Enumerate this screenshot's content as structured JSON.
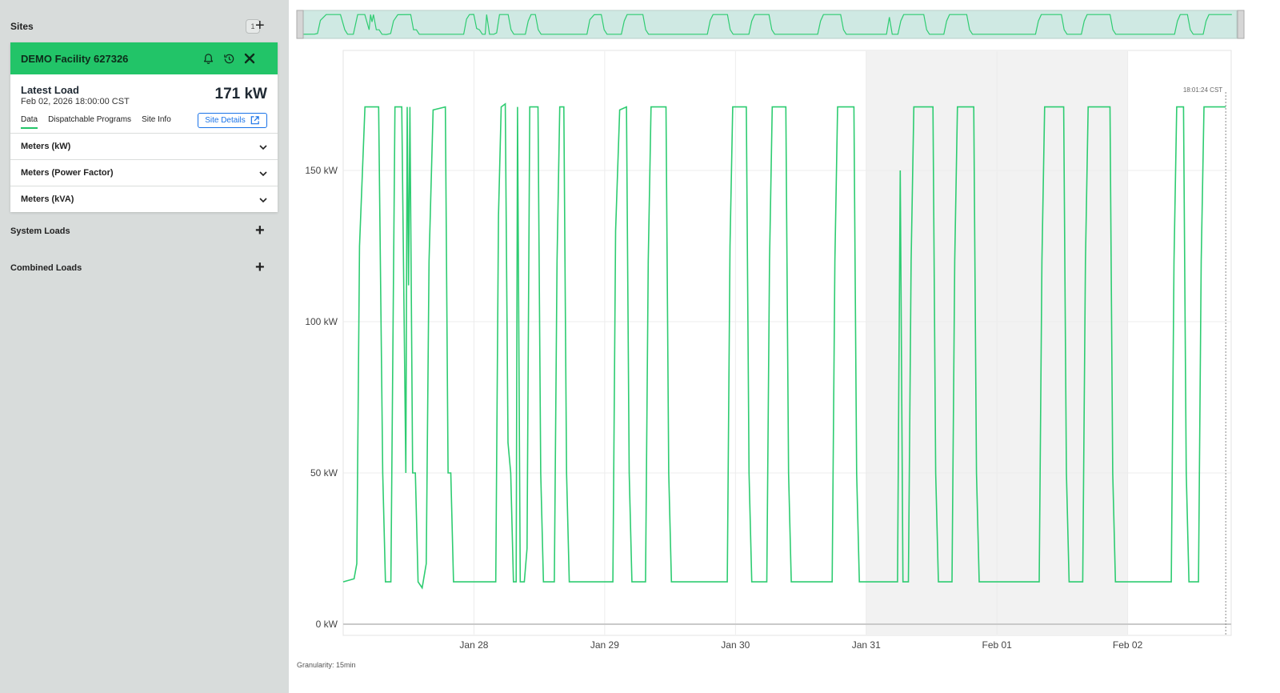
{
  "sidebar": {
    "sites_title": "Sites",
    "sites_count": "1",
    "site": {
      "name": "DEMO Facility 627326",
      "latest_label": "Latest Load",
      "latest_time": "Feb 02, 2026 18:00:00 CST",
      "latest_value": "171 kW",
      "tabs": [
        {
          "label": "Data",
          "active": true
        },
        {
          "label": "Dispatchable Programs",
          "active": false
        },
        {
          "label": "Site Info",
          "active": false
        }
      ],
      "site_details_label": "Site Details",
      "meters": [
        {
          "label": "Meters (kW)"
        },
        {
          "label": "Meters (Power Factor)"
        },
        {
          "label": "Meters (kVA)"
        }
      ],
      "icons": [
        "bell-icon",
        "history-icon",
        "close-icon"
      ]
    },
    "system_loads_label": "System Loads",
    "combined_loads_label": "Combined Loads"
  },
  "main": {
    "granularity": "Granularity: 15min",
    "cursor_label": "18:01:24 CST"
  },
  "colors": {
    "accent": "#22c468",
    "line": "#2ecc71",
    "link": "#1a73e8",
    "sidebar_bg": "#d8dcdb",
    "shade": "#f2f2f2"
  },
  "chart_data": {
    "type": "line",
    "title": "",
    "xlabel": "",
    "ylabel": "",
    "ylim": [
      0,
      185
    ],
    "y_ticks": [
      "0 kW",
      "50 kW",
      "100 kW",
      "150 kW"
    ],
    "x_ticks": [
      "Jan 28",
      "Jan 29",
      "Jan 30",
      "Jan 31",
      "Feb 01",
      "Feb 02"
    ],
    "x_domain": [
      "2026-01-27 00:00",
      "2026-02-02 19:00"
    ],
    "shaded_range": [
      "2026-01-31 00:00",
      "2026-02-02 00:00"
    ],
    "cursor_time": "2026-02-02 18:00",
    "grid": true,
    "series": [
      {
        "values": [
          [
            "2026-01-27 00:00",
            14
          ],
          [
            "2026-01-27 02:00",
            15
          ],
          [
            "2026-01-27 02:30",
            20
          ],
          [
            "2026-01-27 03:00",
            125
          ],
          [
            "2026-01-27 03:30",
            148
          ],
          [
            "2026-01-27 04:00",
            171
          ],
          [
            "2026-01-27 06:30",
            171
          ],
          [
            "2026-01-27 07:15",
            50
          ],
          [
            "2026-01-27 07:45",
            14
          ],
          [
            "2026-01-27 08:45",
            14
          ],
          [
            "2026-01-27 09:30",
            171
          ],
          [
            "2026-01-27 10:45",
            171
          ],
          [
            "2026-01-27 11:30",
            50
          ],
          [
            "2026-01-27 11:45",
            171
          ],
          [
            "2026-01-27 12:00",
            112
          ],
          [
            "2026-01-27 12:15",
            171
          ],
          [
            "2026-01-27 12:45",
            50
          ],
          [
            "2026-01-27 13:15",
            50
          ],
          [
            "2026-01-27 13:45",
            14
          ],
          [
            "2026-01-27 14:30",
            12
          ],
          [
            "2026-01-27 15:15",
            20
          ],
          [
            "2026-01-27 15:45",
            120
          ],
          [
            "2026-01-27 16:30",
            170
          ],
          [
            "2026-01-27 18:45",
            171
          ],
          [
            "2026-01-27 19:15",
            50
          ],
          [
            "2026-01-27 19:45",
            50
          ],
          [
            "2026-01-27 20:15",
            14
          ],
          [
            "2026-01-28 04:00",
            14
          ],
          [
            "2026-01-28 04:30",
            135
          ],
          [
            "2026-01-28 05:00",
            171
          ],
          [
            "2026-01-28 05:45",
            172
          ],
          [
            "2026-01-28 06:15",
            60
          ],
          [
            "2026-01-28 06:45",
            50
          ],
          [
            "2026-01-28 07:15",
            14
          ],
          [
            "2026-01-28 07:45",
            14
          ],
          [
            "2026-01-28 08:00",
            171
          ],
          [
            "2026-01-28 08:30",
            14
          ],
          [
            "2026-01-28 09:15",
            14
          ],
          [
            "2026-01-28 09:45",
            25
          ],
          [
            "2026-01-28 10:15",
            171
          ],
          [
            "2026-01-28 11:45",
            171
          ],
          [
            "2026-01-28 12:15",
            50
          ],
          [
            "2026-01-28 12:45",
            14
          ],
          [
            "2026-01-28 14:45",
            14
          ],
          [
            "2026-01-28 15:15",
            120
          ],
          [
            "2026-01-28 15:45",
            171
          ],
          [
            "2026-01-28 16:30",
            171
          ],
          [
            "2026-01-28 17:00",
            50
          ],
          [
            "2026-01-28 17:30",
            14
          ],
          [
            "2026-01-29 01:30",
            14
          ],
          [
            "2026-01-29 02:00",
            130
          ],
          [
            "2026-01-29 02:45",
            170
          ],
          [
            "2026-01-29 04:00",
            171
          ],
          [
            "2026-01-29 04:30",
            50
          ],
          [
            "2026-01-29 05:00",
            14
          ],
          [
            "2026-01-29 07:30",
            14
          ],
          [
            "2026-01-29 08:00",
            120
          ],
          [
            "2026-01-29 08:30",
            171
          ],
          [
            "2026-01-29 11:15",
            171
          ],
          [
            "2026-01-29 11:45",
            50
          ],
          [
            "2026-01-29 12:15",
            14
          ],
          [
            "2026-01-29 22:30",
            14
          ],
          [
            "2026-01-29 23:00",
            125
          ],
          [
            "2026-01-29 23:30",
            171
          ],
          [
            "2026-01-30 02:00",
            171
          ],
          [
            "2026-01-30 02:30",
            50
          ],
          [
            "2026-01-30 03:00",
            14
          ],
          [
            "2026-01-30 05:45",
            14
          ],
          [
            "2026-01-30 06:15",
            120
          ],
          [
            "2026-01-30 06:45",
            171
          ],
          [
            "2026-01-30 09:15",
            171
          ],
          [
            "2026-01-30 09:45",
            50
          ],
          [
            "2026-01-30 10:15",
            14
          ],
          [
            "2026-01-30 17:45",
            14
          ],
          [
            "2026-01-30 18:15",
            120
          ],
          [
            "2026-01-30 18:45",
            171
          ],
          [
            "2026-01-30 21:45",
            171
          ],
          [
            "2026-01-30 22:15",
            50
          ],
          [
            "2026-01-30 22:45",
            14
          ],
          [
            "2026-01-31 05:45",
            14
          ],
          [
            "2026-01-31 06:15",
            150
          ],
          [
            "2026-01-31 06:45",
            14
          ],
          [
            "2026-01-31 07:45",
            14
          ],
          [
            "2026-01-31 08:15",
            120
          ],
          [
            "2026-01-31 08:45",
            171
          ],
          [
            "2026-01-31 12:15",
            171
          ],
          [
            "2026-01-31 12:45",
            50
          ],
          [
            "2026-01-31 13:15",
            14
          ],
          [
            "2026-01-31 15:45",
            14
          ],
          [
            "2026-01-31 16:15",
            120
          ],
          [
            "2026-01-31 16:45",
            171
          ],
          [
            "2026-01-31 19:45",
            171
          ],
          [
            "2026-01-31 20:15",
            50
          ],
          [
            "2026-01-31 20:45",
            14
          ],
          [
            "2026-02-01 07:45",
            14
          ],
          [
            "2026-02-01 08:15",
            120
          ],
          [
            "2026-02-01 08:45",
            171
          ],
          [
            "2026-02-01 12:15",
            171
          ],
          [
            "2026-02-01 12:45",
            50
          ],
          [
            "2026-02-01 13:15",
            14
          ],
          [
            "2026-02-01 15:45",
            14
          ],
          [
            "2026-02-01 16:15",
            120
          ],
          [
            "2026-02-01 16:45",
            171
          ],
          [
            "2026-02-01 20:45",
            171
          ],
          [
            "2026-02-01 21:15",
            50
          ],
          [
            "2026-02-01 21:45",
            14
          ],
          [
            "2026-02-02 08:00",
            14
          ],
          [
            "2026-02-02 08:30",
            120
          ],
          [
            "2026-02-02 09:00",
            171
          ],
          [
            "2026-02-02 10:15",
            171
          ],
          [
            "2026-02-02 10:45",
            50
          ],
          [
            "2026-02-02 11:15",
            14
          ],
          [
            "2026-02-02 13:00",
            14
          ],
          [
            "2026-02-02 13:30",
            120
          ],
          [
            "2026-02-02 14:00",
            171
          ],
          [
            "2026-02-02 18:00",
            171
          ]
        ]
      }
    ]
  }
}
